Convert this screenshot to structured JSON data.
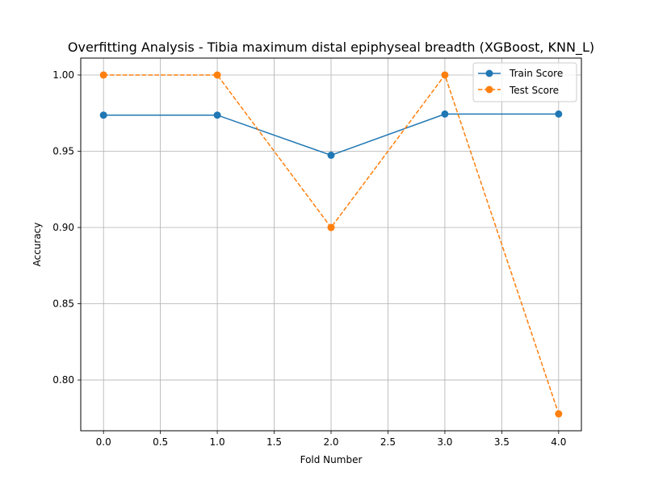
{
  "chart_data": {
    "type": "line",
    "title": "Overfitting Analysis - Tibia maximum distal epiphyseal breadth (XGBoost, KNN_L)",
    "xlabel": "Fold Number",
    "ylabel": "Accuracy",
    "x": [
      0,
      1,
      2,
      3,
      4
    ],
    "xlim": [
      -0.2,
      4.2
    ],
    "ylim": [
      0.7667,
      1.0111
    ],
    "xticks": [
      "0.0",
      "0.5",
      "1.0",
      "1.5",
      "2.0",
      "2.5",
      "3.0",
      "3.5",
      "4.0"
    ],
    "yticks": [
      "0.80",
      "0.85",
      "0.90",
      "0.95",
      "1.00"
    ],
    "grid": true,
    "legend_position": "top-right",
    "series": [
      {
        "name": "Train Score",
        "values": [
          0.9737,
          0.9737,
          0.9474,
          0.9744,
          0.9744
        ],
        "color": "#1f77b4",
        "line_style": "solid",
        "marker": "circle"
      },
      {
        "name": "Test Score",
        "values": [
          1.0,
          1.0,
          0.9,
          1.0,
          0.7778
        ],
        "color": "#ff7f0e",
        "line_style": "dashed",
        "marker": "circle"
      }
    ]
  }
}
